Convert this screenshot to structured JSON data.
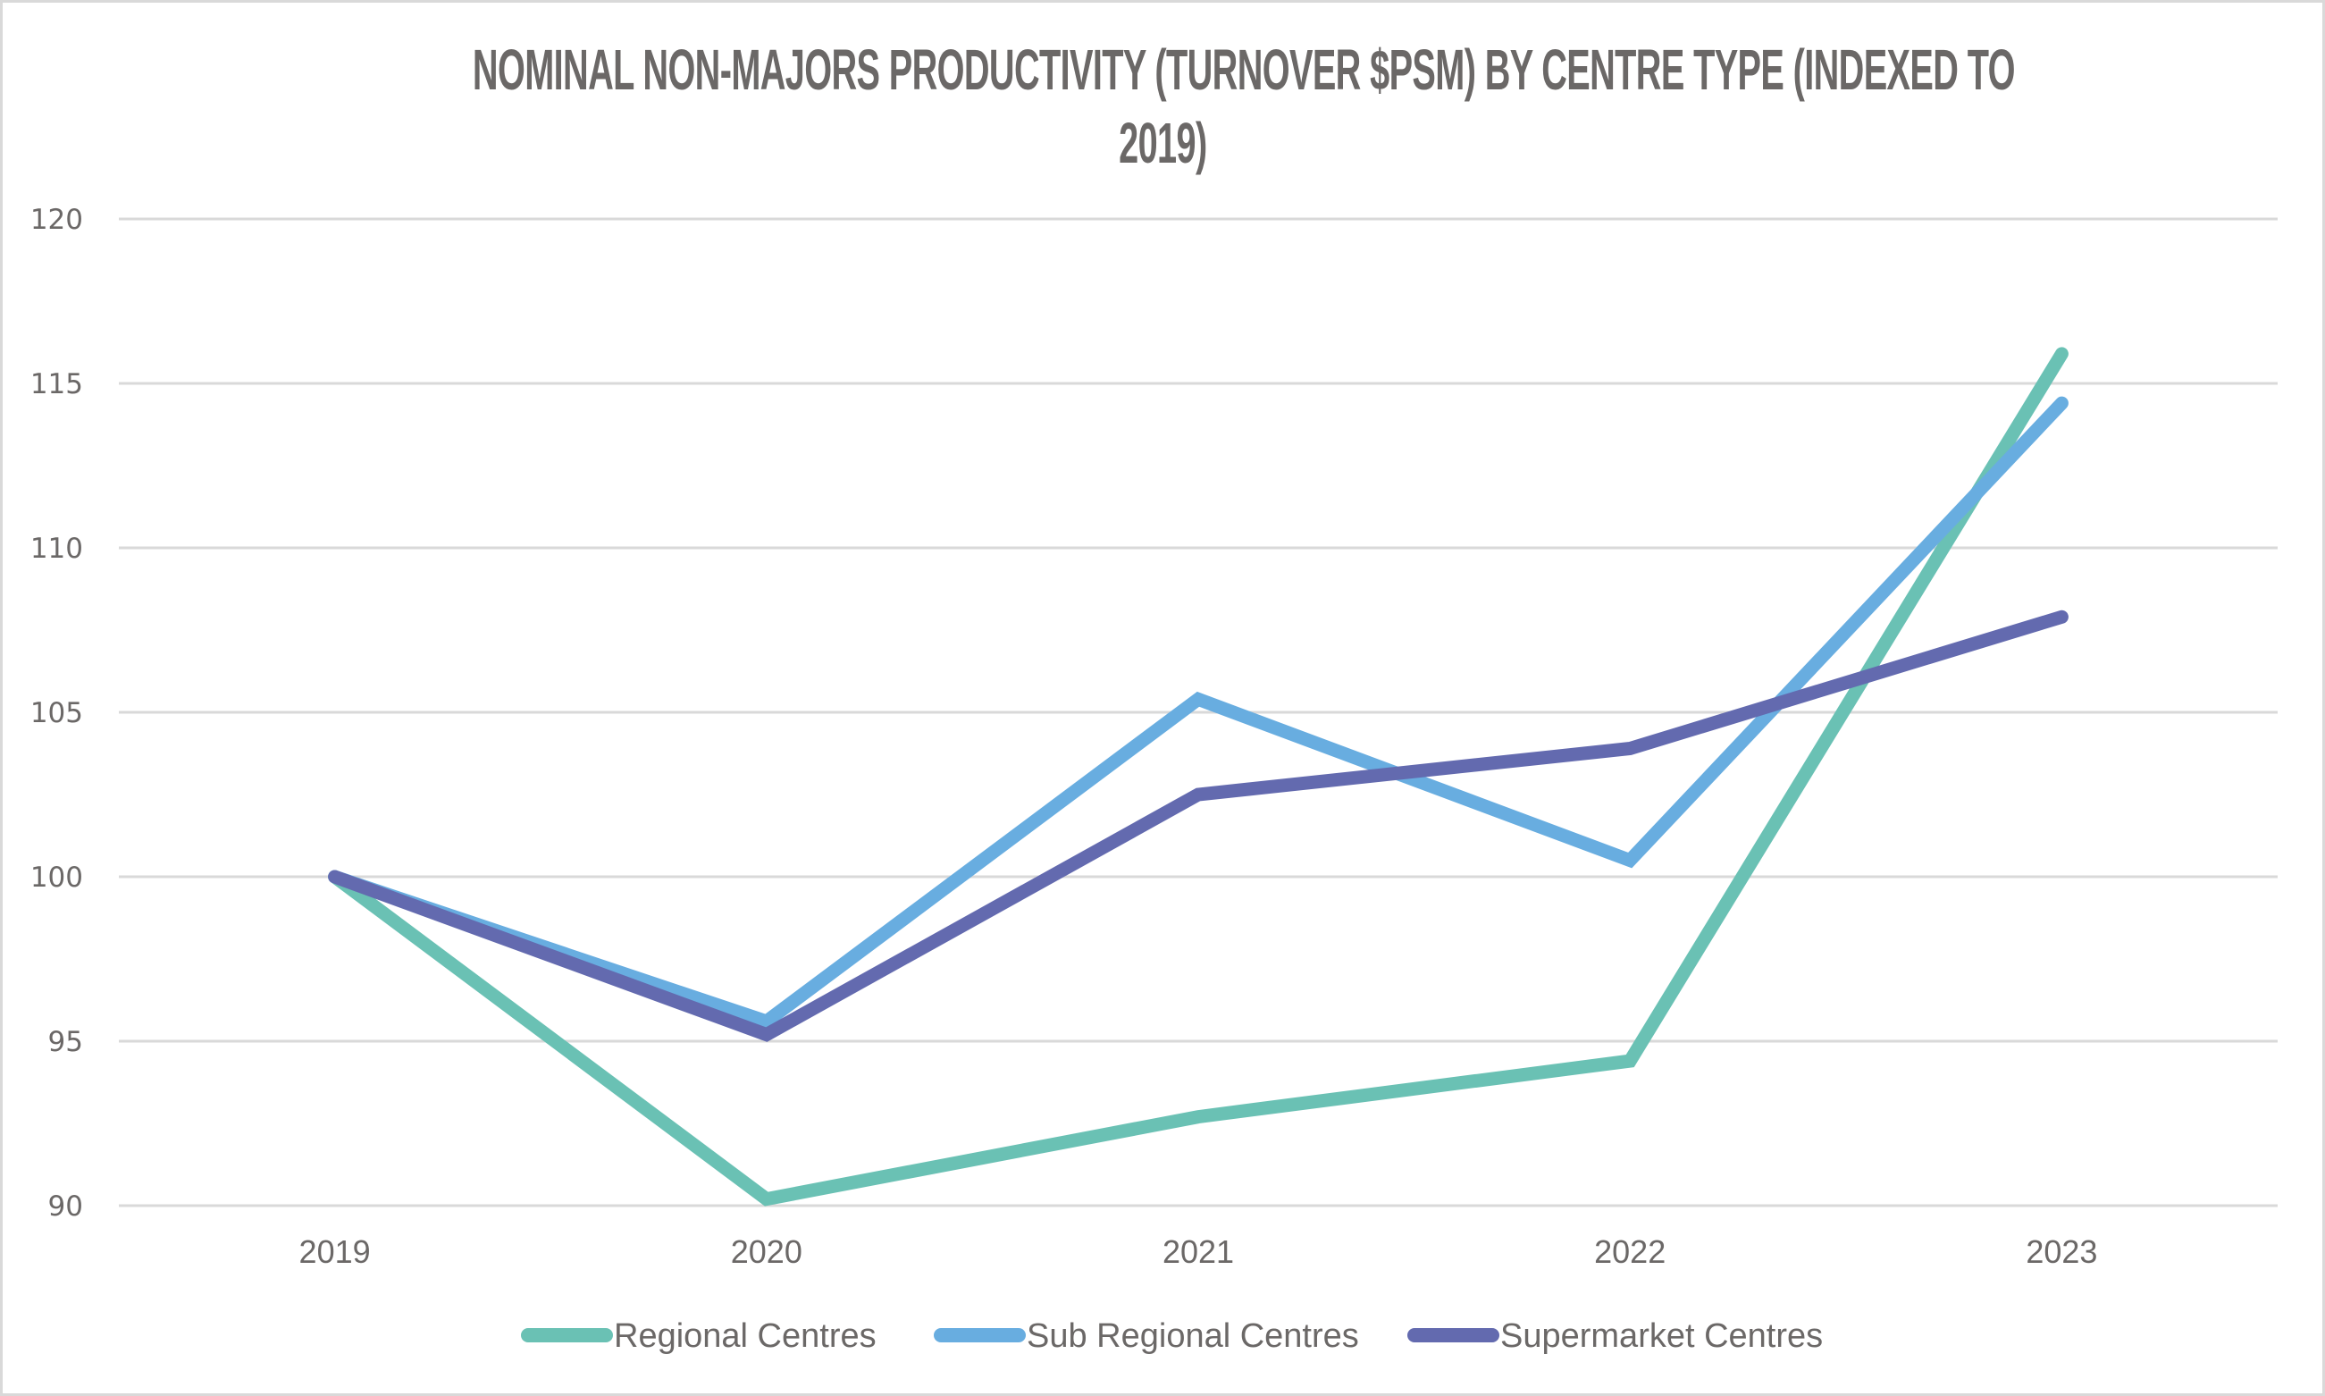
{
  "chart_data": {
    "type": "line",
    "title": "NOMINAL NON-MAJORS PRODUCTIVITY (TURNOVER $PSM) BY CENTRE TYPE (INDEXED TO 2019)",
    "title_lines": [
      "NOMINAL NON-MAJORS PRODUCTIVITY (TURNOVER $PSM) BY CENTRE TYPE (INDEXED TO",
      "2019)"
    ],
    "xlabel": "",
    "ylabel": "",
    "categories": [
      "2019",
      "2020",
      "2021",
      "2022",
      "2023"
    ],
    "ylim": [
      90,
      120
    ],
    "yticks": [
      90,
      95,
      100,
      105,
      110,
      115,
      120
    ],
    "ytick_labels": [
      "90",
      "95",
      "100",
      "105",
      "110",
      "115",
      "120"
    ],
    "grid": true,
    "legend_position": "bottom",
    "series": [
      {
        "name": "Regional Centres",
        "color": "#6ac1b4",
        "values": [
          100,
          90.2,
          92.7,
          94.4,
          115.9
        ]
      },
      {
        "name": "Sub Regional Centres",
        "color": "#68ade0",
        "values": [
          100,
          95.6,
          105.4,
          100.5,
          114.4
        ]
      },
      {
        "name": "Supermarket Centres",
        "color": "#636aaf",
        "values": [
          100,
          95.2,
          102.5,
          103.9,
          107.9
        ]
      }
    ]
  }
}
